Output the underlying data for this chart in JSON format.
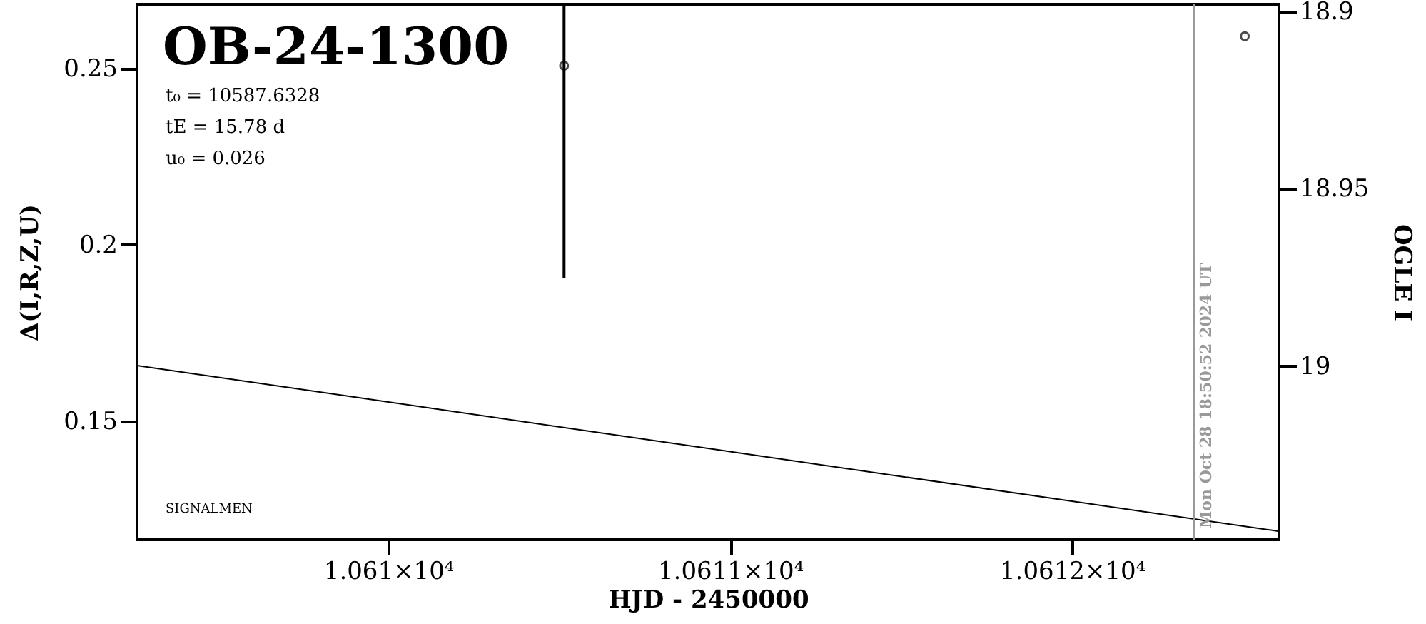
{
  "chart_data": {
    "type": "line",
    "title": "OB-24-1300",
    "xlabel": "HJD - 2450000",
    "ylabel": "Δ(I,R,Z,U)",
    "y2label": "OGLE I",
    "annotations": [
      "t₀ = 10587.6328",
      "tE = 15.78 d",
      "u₀ = 0.026",
      "SIGNALMEN",
      "Mon Oct 28 18:50:52 2024 UT"
    ],
    "xlim": [
      10609.265,
      10612.605
    ],
    "xticks": [
      {
        "value": 10610,
        "label": "1.061×10⁴"
      },
      {
        "value": 10611,
        "label": "1.0611×10⁴"
      },
      {
        "value": 10612,
        "label": "1.0612×10⁴"
      }
    ],
    "ylim": [
      0.1164,
      0.2682
    ],
    "yticks": [
      0.15,
      0.2,
      0.25
    ],
    "y2lim": [
      19.049,
      18.898
    ],
    "y2ticks": [
      18.9,
      18.95,
      19
    ],
    "grid": false,
    "series": [
      {
        "color": "#000000",
        "x": [
          10609.265,
          10612.605
        ],
        "values": [
          0.1658,
          0.1188
        ]
      },
      {
        "type": "scatter",
        "color": "#000000",
        "marker": "circle",
        "x": [
          10610.514
        ],
        "values": [
          0.2508
        ],
        "errors": [
          [
            0.1906,
            0.2682
          ]
        ]
      },
      {
        "type": "scatter",
        "color": "#000000",
        "marker": "circle",
        "axis": "y2",
        "x": [
          10612.505
        ],
        "values": [
          18.907
        ]
      }
    ],
    "ref_lines": [
      {
        "axis": "x",
        "value": 10612.357,
        "color": "#999999",
        "line_style": "solid"
      }
    ]
  }
}
